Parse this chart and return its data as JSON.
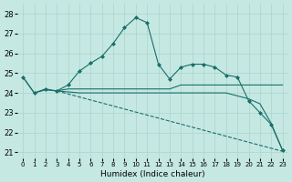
{
  "xlabel": "Humidex (Indice chaleur)",
  "bg_color": "#c5e8e3",
  "grid_color": "#aad4cc",
  "line_color": "#1a6e68",
  "xlim": [
    -0.5,
    23.5
  ],
  "ylim": [
    20.7,
    28.5
  ],
  "yticks": [
    21,
    22,
    23,
    24,
    25,
    26,
    27,
    28
  ],
  "xticks": [
    0,
    1,
    2,
    3,
    4,
    5,
    6,
    7,
    8,
    9,
    10,
    11,
    12,
    13,
    14,
    15,
    16,
    17,
    18,
    19,
    20,
    21,
    22,
    23
  ],
  "lines": [
    {
      "x": [
        0,
        1,
        2,
        3,
        4,
        5,
        6,
        7,
        8,
        9,
        10,
        11,
        12,
        13,
        14,
        15,
        16,
        17,
        18,
        19,
        20,
        21,
        22,
        23
      ],
      "y": [
        24.8,
        24.0,
        24.2,
        24.1,
        24.4,
        25.1,
        25.5,
        25.85,
        26.5,
        27.3,
        27.8,
        27.55,
        25.45,
        24.7,
        25.3,
        25.45,
        25.45,
        25.3,
        24.9,
        24.8,
        23.6,
        23.0,
        22.4,
        21.1
      ],
      "marker": true,
      "linestyle": "-",
      "linewidth": 0.8
    },
    {
      "x": [
        0,
        1,
        2,
        3,
        4,
        5,
        6,
        7,
        8,
        9,
        10,
        11,
        12,
        13,
        14,
        15,
        16,
        17,
        18,
        19,
        20,
        21,
        22,
        23
      ],
      "y": [
        24.8,
        24.0,
        24.15,
        24.1,
        24.2,
        24.2,
        24.2,
        24.2,
        24.2,
        24.2,
        24.2,
        24.2,
        24.2,
        24.2,
        24.4,
        24.4,
        24.4,
        24.4,
        24.4,
        24.4,
        24.4,
        24.4,
        24.4,
        24.4
      ],
      "marker": false,
      "linestyle": "-",
      "linewidth": 0.8
    },
    {
      "x": [
        3,
        4,
        5,
        6,
        7,
        8,
        9,
        10,
        11,
        12,
        13,
        14,
        15,
        16,
        17,
        18,
        19,
        20,
        21,
        22,
        23
      ],
      "y": [
        24.1,
        24.05,
        24.0,
        24.0,
        24.0,
        24.0,
        24.0,
        24.0,
        24.0,
        24.0,
        24.0,
        24.0,
        24.0,
        24.0,
        24.0,
        24.0,
        23.85,
        23.7,
        23.45,
        22.45,
        21.1
      ],
      "marker": false,
      "linestyle": "-",
      "linewidth": 0.8
    },
    {
      "x": [
        3,
        23
      ],
      "y": [
        24.1,
        21.05
      ],
      "marker": false,
      "linestyle": "--",
      "linewidth": 0.8
    }
  ]
}
